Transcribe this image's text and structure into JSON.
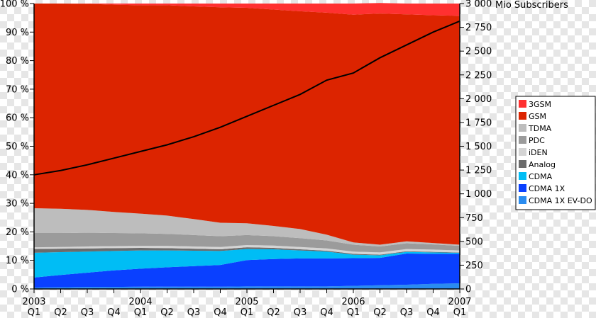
{
  "chart_data": {
    "type": "area",
    "stacked": true,
    "normalized_percent": true,
    "y_left_label": "",
    "y_left_range": [
      0,
      100
    ],
    "y_left_ticks": [
      "0 %",
      "10 %",
      "20 %",
      "30 %",
      "40 %",
      "50 %",
      "60 %",
      "70 %",
      "80 %",
      "90 %",
      "100 %"
    ],
    "y_right_label": "Mio Subscribers",
    "y_right_range": [
      0,
      3000
    ],
    "y_right_ticks": [
      "0",
      "250",
      "500",
      "750",
      "1 000",
      "1 250",
      "1 500",
      "1 750",
      "2 000",
      "2 250",
      "2 500",
      "2 750",
      "3 000"
    ],
    "quarter_labels": [
      "Q1",
      "Q2",
      "Q3",
      "Q4",
      "Q1",
      "Q2",
      "Q3",
      "Q4",
      "Q1",
      "Q2",
      "Q3",
      "Q4",
      "Q1",
      "Q2",
      "Q3",
      "Q4",
      "Q1"
    ],
    "year_labels": [
      {
        "label": "2003",
        "quarter_index": 0
      },
      {
        "label": "2004",
        "quarter_index": 4
      },
      {
        "label": "2005",
        "quarter_index": 8
      },
      {
        "label": "2006",
        "quarter_index": 12
      },
      {
        "label": "2007",
        "quarter_index": 16
      }
    ],
    "series": [
      {
        "name": "CDMA 1X EV-DO",
        "color": "#2a8cf0",
        "values": [
          0.5,
          0.6,
          0.7,
          0.7,
          0.8,
          0.8,
          0.8,
          0.8,
          0.9,
          0.9,
          0.9,
          0.9,
          1.1,
          1.3,
          1.5,
          1.8,
          2.0
        ]
      },
      {
        "name": "CDMA 1X",
        "color": "#0a40ff",
        "values": [
          3.5,
          4.3,
          5.0,
          5.8,
          6.3,
          6.8,
          7.2,
          7.6,
          9.2,
          9.6,
          9.8,
          9.8,
          9.7,
          9.6,
          10.9,
          10.5,
          10.3
        ]
      },
      {
        "name": "CDMA",
        "color": "#00bdf5",
        "values": [
          8.7,
          8.0,
          7.4,
          6.8,
          6.4,
          5.9,
          5.4,
          4.9,
          3.9,
          3.4,
          2.8,
          2.4,
          1.2,
          0.9,
          0.6,
          0.5,
          0.4
        ]
      },
      {
        "name": "Analog",
        "color": "#6b6b6b",
        "values": [
          1.3,
          1.2,
          1.1,
          1.0,
          0.9,
          0.8,
          0.7,
          0.6,
          0.6,
          0.5,
          0.4,
          0.3,
          0.3,
          0.2,
          0.2,
          0.2,
          0.1
        ]
      },
      {
        "name": "iDEN",
        "color": "#d4d4d4",
        "values": [
          0.6,
          0.6,
          0.7,
          0.7,
          0.7,
          0.8,
          0.8,
          0.8,
          0.8,
          0.8,
          0.8,
          0.8,
          0.8,
          0.8,
          0.8,
          0.8,
          0.7
        ]
      },
      {
        "name": "PDC",
        "color": "#9b9b9b",
        "values": [
          5.0,
          4.9,
          4.8,
          4.6,
          4.4,
          4.2,
          4.0,
          3.8,
          3.5,
          3.3,
          3.1,
          2.8,
          2.4,
          2.1,
          2.0,
          1.8,
          1.6
        ]
      },
      {
        "name": "TDMA",
        "color": "#bdbdbd",
        "values": [
          8.7,
          8.5,
          8.0,
          7.4,
          6.9,
          6.4,
          5.6,
          4.7,
          4.1,
          3.6,
          3.2,
          2.0,
          0.8,
          0.6,
          0.7,
          0.5,
          0.4
        ]
      },
      {
        "name": "GSM",
        "color": "#dc2400",
        "values": [
          71.7,
          71.9,
          72.2,
          72.6,
          73.0,
          73.7,
          74.5,
          75.5,
          75.5,
          75.8,
          76.3,
          77.8,
          79.8,
          81.0,
          79.5,
          79.8,
          80.2
        ]
      },
      {
        "name": "3GSM",
        "color": "#ff3030",
        "values": [
          0.0,
          0.0,
          0.1,
          0.4,
          0.6,
          0.6,
          1.0,
          1.3,
          1.5,
          2.1,
          2.7,
          3.2,
          3.9,
          3.7,
          3.8,
          4.1,
          4.3
        ]
      }
    ],
    "total_subscribers_line": {
      "axis": "right",
      "color": "#000000",
      "values": [
        1200,
        1245,
        1305,
        1375,
        1445,
        1515,
        1600,
        1700,
        1815,
        1930,
        2045,
        2195,
        2270,
        2430,
        2565,
        2700,
        2815
      ]
    },
    "legend": {
      "placement": "right",
      "order": [
        "3GSM",
        "GSM",
        "TDMA",
        "PDC",
        "iDEN",
        "Analog",
        "CDMA",
        "CDMA 1X",
        "CDMA 1X EV-DO"
      ]
    }
  }
}
